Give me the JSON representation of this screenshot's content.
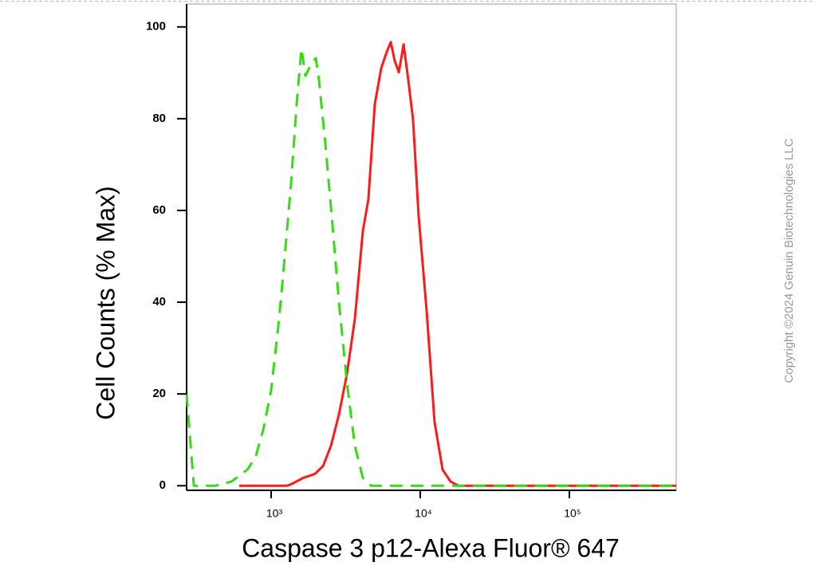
{
  "chart_data": {
    "type": "line",
    "xlabel": "Caspase 3 p12-Alexa Fluor® 647",
    "ylabel": "Cell Counts (% Max)",
    "annotation": "Copyright ©2024 Genuin Biotechnologies LLC",
    "xscale": "log",
    "xlim": [
      271,
      521000
    ],
    "ylim": [
      -1,
      105
    ],
    "xticks": [
      {
        "value": 1000,
        "label": "10³"
      },
      {
        "value": 10000,
        "label": "10⁴"
      },
      {
        "value": 100000,
        "label": "10⁵"
      }
    ],
    "yticks": [
      0,
      20,
      40,
      60,
      80,
      100
    ],
    "series": [
      {
        "color": "#ff1a1a",
        "dashed": false,
        "x": [
          611,
          1279,
          1361,
          1637,
          1968,
          2228,
          2518,
          2850,
          3221,
          3642,
          4121,
          4487,
          4955,
          5470,
          5957,
          6339,
          6745,
          7178,
          7727,
          8318,
          8954,
          9750,
          11040,
          12470,
          14120,
          15960,
          18070,
          21730,
          521000
        ],
        "values": [
          0,
          0,
          0.3,
          1.7,
          2.6,
          4.3,
          8.7,
          15.6,
          24.3,
          36.4,
          55.5,
          62.4,
          83.2,
          91,
          94.5,
          96.7,
          92.6,
          90.1,
          96.2,
          88.4,
          79.7,
          58.9,
          38.1,
          13.9,
          3.5,
          0.9,
          0,
          0,
          0
        ]
      },
      {
        "color": "#33dd11",
        "dashed": true,
        "x": [
          271,
          303,
          423,
          541,
          692,
          783,
          884,
          1000,
          1131,
          1203,
          1361,
          1483,
          1597,
          1698,
          1851,
          1993,
          2094,
          2311,
          2518,
          2850,
          3221,
          3642,
          4121,
          4659,
          5610,
          521000
        ],
        "values": [
          19.9,
          0,
          0,
          0.9,
          3.5,
          6.1,
          12.1,
          20.8,
          36.4,
          45.9,
          65.9,
          83.2,
          95.3,
          89.3,
          91.9,
          93.2,
          88.4,
          74.5,
          60.7,
          39.9,
          22.5,
          8.7,
          1.7,
          0,
          0,
          0
        ]
      }
    ]
  }
}
